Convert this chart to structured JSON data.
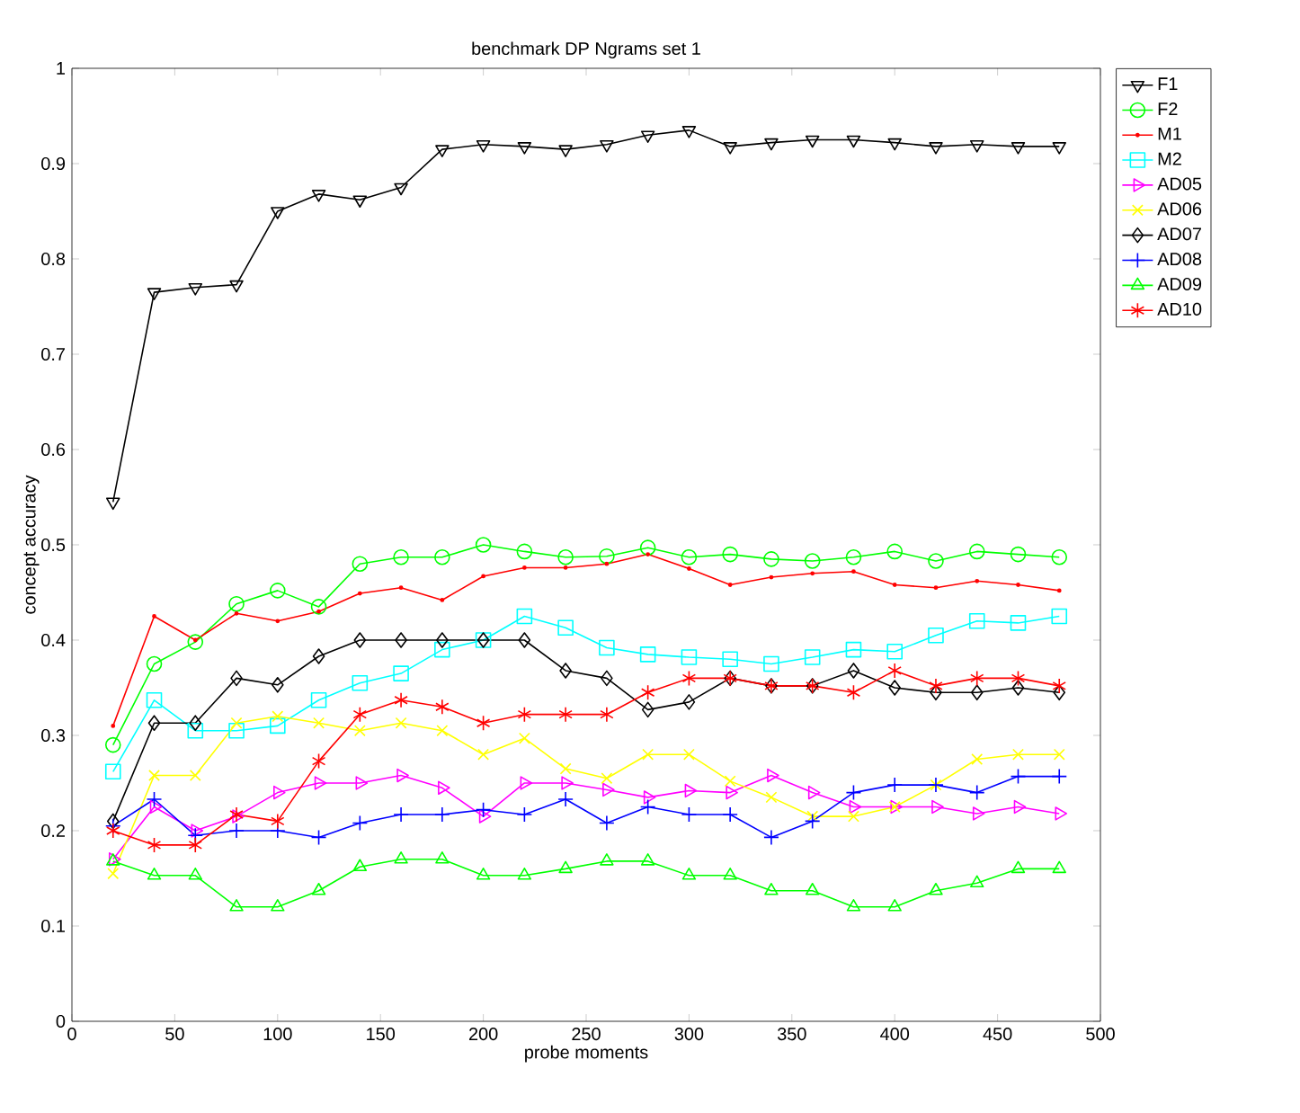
{
  "chart_data": {
    "type": "line",
    "title": "benchmark DP Ngrams set 1",
    "xlabel": "probe moments",
    "ylabel": "concept accuracy",
    "x": [
      20,
      40,
      60,
      80,
      100,
      120,
      140,
      160,
      180,
      200,
      220,
      240,
      260,
      280,
      300,
      320,
      340,
      360,
      380,
      400,
      420,
      440,
      460,
      480
    ],
    "xlim": [
      0,
      500
    ],
    "xticks": [
      0,
      50,
      100,
      150,
      200,
      250,
      300,
      350,
      400,
      450,
      500
    ],
    "ylim": [
      0,
      1
    ],
    "yticks": [
      0,
      0.1,
      0.2,
      0.3,
      0.4,
      0.5,
      0.6,
      0.7,
      0.8,
      0.9,
      1
    ],
    "grid": false,
    "legend": "top right",
    "line_style": "solid",
    "series": [
      {
        "name": "F1",
        "color": "#000000",
        "marker": "triangle-down",
        "values": [
          0.545,
          0.765,
          0.77,
          0.773,
          0.85,
          0.868,
          0.862,
          0.875,
          0.915,
          0.92,
          0.918,
          0.915,
          0.92,
          0.93,
          0.935,
          0.918,
          0.922,
          0.925,
          0.925,
          0.922,
          0.918,
          0.92,
          0.918,
          0.918
        ]
      },
      {
        "name": "F2",
        "color": "#00ff00",
        "marker": "circle",
        "values": [
          0.29,
          0.375,
          0.398,
          0.438,
          0.452,
          0.435,
          0.48,
          0.487,
          0.487,
          0.5,
          0.493,
          0.487,
          0.488,
          0.497,
          0.487,
          0.49,
          0.485,
          0.483,
          0.487,
          0.493,
          0.483,
          0.493,
          0.49,
          0.487
        ]
      },
      {
        "name": "M1",
        "color": "#ff0000",
        "marker": "point",
        "values": [
          0.31,
          0.425,
          0.4,
          0.428,
          0.42,
          0.43,
          0.449,
          0.455,
          0.442,
          0.467,
          0.476,
          0.476,
          0.48,
          0.49,
          0.475,
          0.458,
          0.466,
          0.47,
          0.472,
          0.458,
          0.455,
          0.462,
          0.458,
          0.452
        ]
      },
      {
        "name": "M2",
        "color": "#00ffff",
        "marker": "square",
        "values": [
          0.262,
          0.337,
          0.305,
          0.305,
          0.31,
          0.337,
          0.355,
          0.365,
          0.39,
          0.4,
          0.425,
          0.413,
          0.392,
          0.385,
          0.382,
          0.38,
          0.375,
          0.382,
          0.39,
          0.388,
          0.405,
          0.42,
          0.418,
          0.425
        ]
      },
      {
        "name": "AD05",
        "color": "#ff00ff",
        "marker": "triangle-right",
        "values": [
          0.17,
          0.225,
          0.2,
          0.215,
          0.24,
          0.25,
          0.25,
          0.258,
          0.245,
          0.215,
          0.25,
          0.25,
          0.243,
          0.235,
          0.242,
          0.24,
          0.258,
          0.24,
          0.225,
          0.225,
          0.225,
          0.218,
          0.225,
          0.218
        ]
      },
      {
        "name": "AD06",
        "color": "#ffff00",
        "marker": "x",
        "values": [
          0.155,
          0.258,
          0.258,
          0.313,
          0.32,
          0.313,
          0.305,
          0.313,
          0.305,
          0.28,
          0.297,
          0.265,
          0.255,
          0.28,
          0.28,
          0.252,
          0.235,
          0.215,
          0.215,
          0.225,
          0.248,
          0.275,
          0.28,
          0.28
        ]
      },
      {
        "name": "AD07",
        "color": "#000000",
        "marker": "diamond",
        "values": [
          0.21,
          0.313,
          0.313,
          0.36,
          0.353,
          0.383,
          0.4,
          0.4,
          0.4,
          0.4,
          0.4,
          0.368,
          0.36,
          0.327,
          0.335,
          0.36,
          0.352,
          0.352,
          0.368,
          0.35,
          0.345,
          0.345,
          0.35,
          0.345
        ]
      },
      {
        "name": "AD08",
        "color": "#0000ff",
        "marker": "plus",
        "values": [
          0.205,
          0.233,
          0.195,
          0.2,
          0.2,
          0.193,
          0.208,
          0.217,
          0.217,
          0.222,
          0.217,
          0.233,
          0.208,
          0.225,
          0.217,
          0.217,
          0.193,
          0.21,
          0.24,
          0.248,
          0.248,
          0.24,
          0.257,
          0.257
        ]
      },
      {
        "name": "AD09",
        "color": "#00ff00",
        "marker": "triangle",
        "values": [
          0.168,
          0.153,
          0.153,
          0.12,
          0.12,
          0.137,
          0.162,
          0.17,
          0.17,
          0.153,
          0.153,
          0.16,
          0.168,
          0.168,
          0.153,
          0.153,
          0.137,
          0.137,
          0.12,
          0.12,
          0.137,
          0.145,
          0.16,
          0.16
        ]
      },
      {
        "name": "AD10",
        "color": "#ff0000",
        "marker": "cross",
        "values": [
          0.2,
          0.185,
          0.185,
          0.217,
          0.21,
          0.273,
          0.322,
          0.337,
          0.33,
          0.313,
          0.322,
          0.322,
          0.322,
          0.345,
          0.36,
          0.36,
          0.352,
          0.352,
          0.345,
          0.368,
          0.352,
          0.36,
          0.36,
          0.352
        ]
      }
    ]
  }
}
